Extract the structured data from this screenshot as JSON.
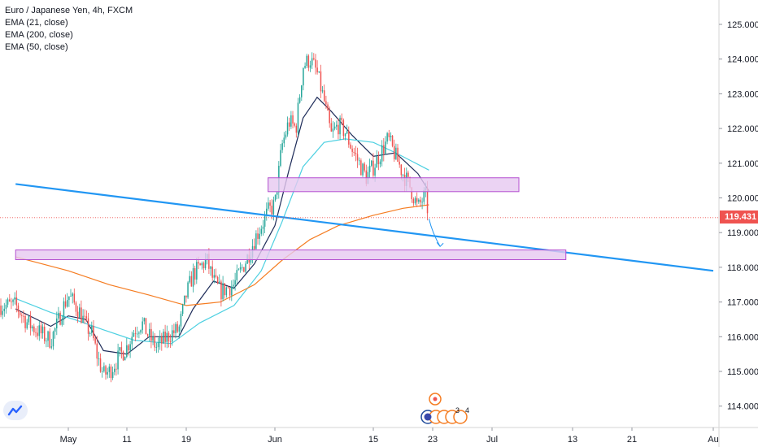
{
  "legend": {
    "symbol": "Euro / Japanese Yen, 4h, FXCM",
    "ema21": "EMA (21, close)",
    "ema200": "EMA (200, close)",
    "ema50": "EMA (50, close)"
  },
  "colors": {
    "background": "#ffffff",
    "candle_up": "#26a69a",
    "candle_down": "#ef5350",
    "ema21": "#1f2d5a",
    "ema50": "#4dd0e1",
    "ema200": "#f57c21",
    "trendline": "#2196f3",
    "zone_fill": "#e6c8f0",
    "zone_border": "#b44fd0",
    "price_line": "#ef5350",
    "axis_text": "#131722",
    "divider": "#d6d6d6"
  },
  "last_price": "119.431",
  "event_markers": [
    "3",
    "4"
  ],
  "chart_data": {
    "type": "candlestick",
    "title": "Euro / Japanese Yen, 4h, FXCM",
    "xlabel": "",
    "ylabel": "",
    "ylim": [
      113.5,
      125.4
    ],
    "y_ticks": [
      "125.000",
      "124.000",
      "123.000",
      "122.000",
      "121.000",
      "120.000",
      "119.000",
      "118.000",
      "117.000",
      "116.000",
      "115.000",
      "114.000"
    ],
    "x_ticks": [
      "May",
      "11",
      "19",
      "Jun",
      "15",
      "23",
      "Jul",
      "13",
      "21",
      "Au"
    ],
    "x_tick_dates": [
      "2020-05-01",
      "2020-05-11",
      "2020-05-19",
      "2020-06-01",
      "2020-06-15",
      "2020-06-23",
      "2020-07-01",
      "2020-07-13",
      "2020-07-21",
      "2020-08-01"
    ],
    "close_path": [
      [
        "2020-04-22",
        116.9
      ],
      [
        "2020-04-24",
        116.4
      ],
      [
        "2020-04-27",
        116.0
      ],
      [
        "2020-04-28",
        115.9
      ],
      [
        "2020-04-29",
        116.3
      ],
      [
        "2020-04-30",
        116.8
      ],
      [
        "2020-05-01",
        117.2
      ],
      [
        "2020-05-03",
        116.7
      ],
      [
        "2020-05-04",
        116.3
      ],
      [
        "2020-05-05",
        116.1
      ],
      [
        "2020-05-06",
        115.4
      ],
      [
        "2020-05-07",
        114.9
      ],
      [
        "2020-05-08",
        115.0
      ],
      [
        "2020-05-10",
        115.5
      ],
      [
        "2020-05-11",
        115.7
      ],
      [
        "2020-05-12",
        116.2
      ],
      [
        "2020-05-13",
        116.4
      ],
      [
        "2020-05-14",
        116.0
      ],
      [
        "2020-05-15",
        115.7
      ],
      [
        "2020-05-17",
        116.1
      ],
      [
        "2020-05-18",
        116.2
      ],
      [
        "2020-05-19",
        117.2
      ],
      [
        "2020-05-20",
        117.8
      ],
      [
        "2020-05-21",
        118.0
      ],
      [
        "2020-05-22",
        118.2
      ],
      [
        "2020-05-23",
        117.6
      ],
      [
        "2020-05-24",
        117.3
      ],
      [
        "2020-05-26",
        117.5
      ],
      [
        "2020-05-27",
        117.9
      ],
      [
        "2020-05-28",
        118.3
      ],
      [
        "2020-05-29",
        118.8
      ],
      [
        "2020-05-30",
        119.2
      ],
      [
        "2020-05-31",
        119.6
      ],
      [
        "2020-06-01",
        119.8
      ],
      [
        "2020-06-02",
        121.5
      ],
      [
        "2020-06-03",
        122.2
      ],
      [
        "2020-06-04",
        122.0
      ],
      [
        "2020-06-05",
        123.8
      ],
      [
        "2020-06-06",
        124.0
      ],
      [
        "2020-06-07",
        123.6
      ],
      [
        "2020-06-08",
        122.8
      ],
      [
        "2020-06-09",
        121.8
      ],
      [
        "2020-06-10",
        122.1
      ],
      [
        "2020-06-11",
        121.9
      ],
      [
        "2020-06-12",
        121.4
      ],
      [
        "2020-06-13",
        121.0
      ],
      [
        "2020-06-14",
        120.6
      ],
      [
        "2020-06-15",
        120.9
      ],
      [
        "2020-06-16",
        121.3
      ],
      [
        "2020-06-17",
        121.7
      ],
      [
        "2020-06-18",
        121.2
      ],
      [
        "2020-06-19",
        120.7
      ],
      [
        "2020-06-20",
        120.3
      ],
      [
        "2020-06-21",
        119.7
      ],
      [
        "2020-06-22",
        120.1
      ],
      [
        "2020-06-22.5",
        119.43
      ]
    ],
    "series": [
      {
        "name": "EMA (21, close)",
        "values": [
          [
            "2020-04-22",
            116.8
          ],
          [
            "2020-04-28",
            116.3
          ],
          [
            "2020-05-01",
            116.6
          ],
          [
            "2020-05-04",
            116.5
          ],
          [
            "2020-05-07",
            115.6
          ],
          [
            "2020-05-11",
            115.5
          ],
          [
            "2020-05-14",
            116.0
          ],
          [
            "2020-05-18",
            116.0
          ],
          [
            "2020-05-20",
            116.8
          ],
          [
            "2020-05-23",
            117.6
          ],
          [
            "2020-05-26",
            117.4
          ],
          [
            "2020-05-29",
            118.1
          ],
          [
            "2020-06-01",
            119.2
          ],
          [
            "2020-06-03",
            120.8
          ],
          [
            "2020-06-05",
            122.3
          ],
          [
            "2020-06-07",
            122.9
          ],
          [
            "2020-06-09",
            122.5
          ],
          [
            "2020-06-12",
            121.8
          ],
          [
            "2020-06-15",
            121.2
          ],
          [
            "2020-06-18",
            121.3
          ],
          [
            "2020-06-21",
            120.7
          ],
          [
            "2020-06-22.5",
            120.2
          ]
        ]
      },
      {
        "name": "EMA (50, close)",
        "values": [
          [
            "2020-04-22",
            117.1
          ],
          [
            "2020-04-28",
            116.7
          ],
          [
            "2020-05-02",
            116.5
          ],
          [
            "2020-05-07",
            116.2
          ],
          [
            "2020-05-12",
            115.9
          ],
          [
            "2020-05-17",
            115.8
          ],
          [
            "2020-05-21",
            116.4
          ],
          [
            "2020-05-26",
            116.9
          ],
          [
            "2020-05-30",
            117.9
          ],
          [
            "2020-06-02",
            119.3
          ],
          [
            "2020-06-05",
            120.9
          ],
          [
            "2020-06-08",
            121.6
          ],
          [
            "2020-06-11",
            121.7
          ],
          [
            "2020-06-15",
            121.6
          ],
          [
            "2020-06-18",
            121.3
          ],
          [
            "2020-06-22.5",
            120.8
          ]
        ]
      },
      {
        "name": "EMA (200, close)",
        "values": [
          [
            "2020-04-22",
            118.3
          ],
          [
            "2020-05-01",
            117.9
          ],
          [
            "2020-05-08",
            117.5
          ],
          [
            "2020-05-14",
            117.2
          ],
          [
            "2020-05-19",
            116.9
          ],
          [
            "2020-05-24",
            117.0
          ],
          [
            "2020-05-29",
            117.5
          ],
          [
            "2020-06-02",
            118.2
          ],
          [
            "2020-06-06",
            118.8
          ],
          [
            "2020-06-10",
            119.2
          ],
          [
            "2020-06-15",
            119.5
          ],
          [
            "2020-06-19",
            119.7
          ],
          [
            "2020-06-22.5",
            119.8
          ]
        ]
      }
    ],
    "annotations": [
      {
        "kind": "trendline",
        "from": [
          "2020-04-22",
          120.4
        ],
        "to": [
          "2020-08-01",
          117.9
        ]
      },
      {
        "kind": "zone",
        "x": [
          "2020-05-31",
          "2020-07-05"
        ],
        "y": [
          120.18,
          120.58
        ]
      },
      {
        "kind": "zone",
        "x": [
          "2020-04-22",
          "2020-07-12"
        ],
        "y": [
          118.22,
          118.5
        ]
      },
      {
        "kind": "arrow",
        "from": [
          "2020-06-22.5",
          119.4
        ],
        "to": [
          "2020-06-24",
          118.6
        ]
      },
      {
        "kind": "price_line",
        "y": 119.431
      }
    ],
    "grid": false,
    "legend": "top-left"
  }
}
